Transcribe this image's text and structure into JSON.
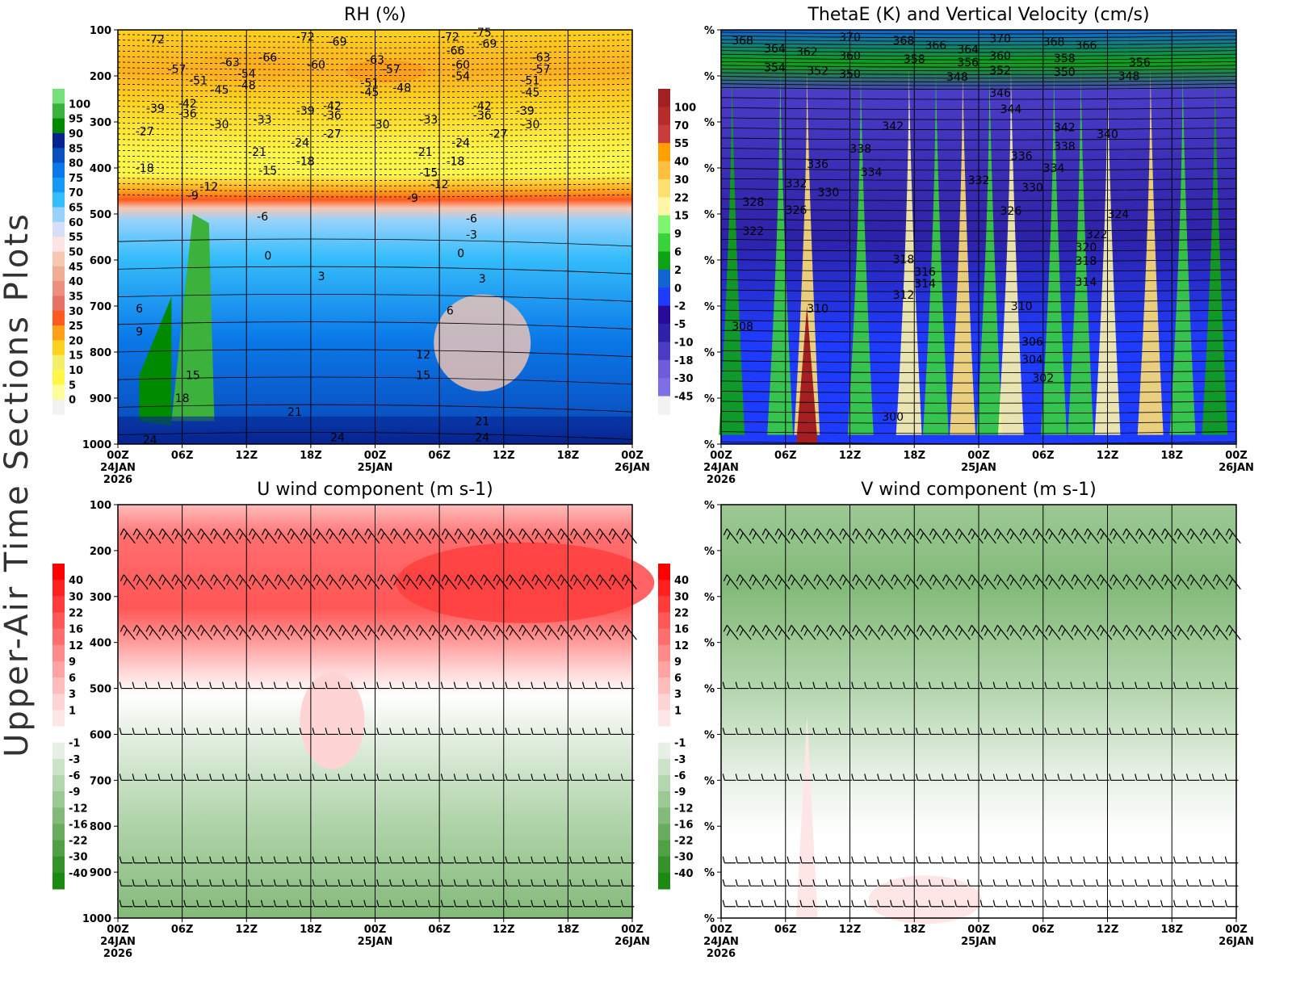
{
  "side_label": "Upper-Air Time Sections Plots",
  "chart_data": [
    {
      "type": "heatmap",
      "title": "RH (%)",
      "x_ticks": [
        "00Z",
        "06Z",
        "12Z",
        "18Z",
        "00Z",
        "06Z",
        "12Z",
        "18Z",
        "00Z"
      ],
      "x_date_labels": [
        {
          "tick": 0,
          "lines": [
            "24JAN",
            "2026"
          ]
        },
        {
          "tick": 4,
          "lines": [
            "25JAN"
          ]
        },
        {
          "tick": 8,
          "lines": [
            "26JAN"
          ]
        }
      ],
      "y_ticks": [
        "100",
        "200",
        "300",
        "400",
        "500",
        "600",
        "700",
        "800",
        "900",
        "1000"
      ],
      "ylim": [
        1000,
        100
      ],
      "x_range_hours": [
        0,
        48
      ],
      "colorbar": {
        "levels": [
          "100",
          "95",
          "90",
          "85",
          "80",
          "75",
          "70",
          "65",
          "60",
          "55",
          "50",
          "45",
          "40",
          "35",
          "30",
          "25",
          "20",
          "15",
          "10",
          "5",
          "0"
        ],
        "colors": [
          "#76e07a",
          "#3cb23c",
          "#008a00",
          "#06238f",
          "#0a4fc0",
          "#0a78e8",
          "#1499f7",
          "#35bdfb",
          "#96d2fb",
          "#d6defb",
          "#fde4e4",
          "#f6c7b3",
          "#efae94",
          "#ec8f80",
          "#e57264",
          "#ff5a1f",
          "#ff9f1a",
          "#ffd11f",
          "#f4ef6a",
          "#fff64a",
          "#fffc9a",
          "#f2f2f2"
        ]
      },
      "contour_labels": [
        {
          "v": "-72",
          "h": 3.5,
          "p": 120
        },
        {
          "v": "-63",
          "h": 10.5,
          "p": 170
        },
        {
          "v": "-66",
          "h": 14,
          "p": 160
        },
        {
          "v": "-72",
          "h": 17.5,
          "p": 115
        },
        {
          "v": "-69",
          "h": 20.5,
          "p": 125
        },
        {
          "v": "-57",
          "h": 5.5,
          "p": 185
        },
        {
          "v": "-51",
          "h": 7.5,
          "p": 210
        },
        {
          "v": "-54",
          "h": 12,
          "p": 195
        },
        {
          "v": "-48",
          "h": 12,
          "p": 220
        },
        {
          "v": "-45",
          "h": 9.5,
          "p": 230
        },
        {
          "v": "-60",
          "h": 18.5,
          "p": 175
        },
        {
          "v": "-63",
          "h": 24,
          "p": 165
        },
        {
          "v": "-57",
          "h": 25.5,
          "p": 185
        },
        {
          "v": "-51",
          "h": 23.5,
          "p": 215
        },
        {
          "v": "-48",
          "h": 26.5,
          "p": 225
        },
        {
          "v": "-45",
          "h": 23.5,
          "p": 235
        },
        {
          "v": "-72",
          "h": 31,
          "p": 115
        },
        {
          "v": "-75",
          "h": 34,
          "p": 105
        },
        {
          "v": "-66",
          "h": 31.5,
          "p": 145
        },
        {
          "v": "-69",
          "h": 34.5,
          "p": 130
        },
        {
          "v": "-60",
          "h": 32,
          "p": 175
        },
        {
          "v": "-54",
          "h": 32,
          "p": 200
        },
        {
          "v": "-63",
          "h": 39.5,
          "p": 160
        },
        {
          "v": "-57",
          "h": 39.5,
          "p": 185
        },
        {
          "v": "-51",
          "h": 38.5,
          "p": 210
        },
        {
          "v": "-45",
          "h": 38.5,
          "p": 235
        },
        {
          "v": "-39",
          "h": 3.5,
          "p": 270
        },
        {
          "v": "-42",
          "h": 6.5,
          "p": 260
        },
        {
          "v": "-36",
          "h": 6.5,
          "p": 282
        },
        {
          "v": "-30",
          "h": 9.5,
          "p": 305
        },
        {
          "v": "-33",
          "h": 13.5,
          "p": 295
        },
        {
          "v": "-39",
          "h": 17.5,
          "p": 275
        },
        {
          "v": "-42",
          "h": 20,
          "p": 265
        },
        {
          "v": "-36",
          "h": 20,
          "p": 285
        },
        {
          "v": "-30",
          "h": 24.5,
          "p": 305
        },
        {
          "v": "-33",
          "h": 29,
          "p": 295
        },
        {
          "v": "-42",
          "h": 34,
          "p": 265
        },
        {
          "v": "-36",
          "h": 34,
          "p": 285
        },
        {
          "v": "-39",
          "h": 38,
          "p": 275
        },
        {
          "v": "-30",
          "h": 38.5,
          "p": 305
        },
        {
          "v": "-27",
          "h": 2.5,
          "p": 320
        },
        {
          "v": "-27",
          "h": 20,
          "p": 325
        },
        {
          "v": "-27",
          "h": 35.5,
          "p": 325
        },
        {
          "v": "-24",
          "h": 17,
          "p": 345
        },
        {
          "v": "-21",
          "h": 13,
          "p": 365
        },
        {
          "v": "-21",
          "h": 28.5,
          "p": 365
        },
        {
          "v": "-24",
          "h": 32,
          "p": 345
        },
        {
          "v": "-18",
          "h": 2.5,
          "p": 400
        },
        {
          "v": "-18",
          "h": 17.5,
          "p": 385
        },
        {
          "v": "-18",
          "h": 31.5,
          "p": 385
        },
        {
          "v": "-15",
          "h": 14,
          "p": 405
        },
        {
          "v": "-15",
          "h": 29,
          "p": 410
        },
        {
          "v": "-12",
          "h": 8.5,
          "p": 440
        },
        {
          "v": "-12",
          "h": 30,
          "p": 435
        },
        {
          "v": "-9",
          "h": 7,
          "p": 460
        },
        {
          "v": "-9",
          "h": 27.5,
          "p": 465
        },
        {
          "v": "-6",
          "h": 13.5,
          "p": 505
        },
        {
          "v": "-6",
          "h": 33,
          "p": 510
        },
        {
          "v": "-3",
          "h": 33,
          "p": 545
        },
        {
          "v": "0",
          "h": 14,
          "p": 590
        },
        {
          "v": "0",
          "h": 32,
          "p": 585
        },
        {
          "v": "3",
          "h": 19,
          "p": 635
        },
        {
          "v": "3",
          "h": 34,
          "p": 640
        },
        {
          "v": "6",
          "h": 2,
          "p": 705
        },
        {
          "v": "6",
          "h": 31,
          "p": 710
        },
        {
          "v": "9",
          "h": 2,
          "p": 755
        },
        {
          "v": "12",
          "h": 28.5,
          "p": 805
        },
        {
          "v": "15",
          "h": 7,
          "p": 850
        },
        {
          "v": "15",
          "h": 28.5,
          "p": 850
        },
        {
          "v": "18",
          "h": 6,
          "p": 900
        },
        {
          "v": "21",
          "h": 16.5,
          "p": 930
        },
        {
          "v": "21",
          "h": 34,
          "p": 950
        },
        {
          "v": "24",
          "h": 3,
          "p": 990
        },
        {
          "v": "24",
          "h": 20.5,
          "p": 985
        },
        {
          "v": "24",
          "h": 34,
          "p": 985
        }
      ]
    },
    {
      "type": "heatmap",
      "title": "ThetaE (K) and Vertical Velocity (cm/s)",
      "x_ticks": [
        "00Z",
        "06Z",
        "12Z",
        "18Z",
        "00Z",
        "06Z",
        "12Z",
        "18Z",
        "00Z"
      ],
      "x_date_labels": [
        {
          "tick": 0,
          "lines": [
            "24JAN",
            "2026"
          ]
        },
        {
          "tick": 4,
          "lines": [
            "25JAN"
          ]
        },
        {
          "tick": 8,
          "lines": [
            "26JAN"
          ]
        }
      ],
      "y_ticks": [
        "%",
        "%",
        "%",
        "%",
        "%",
        "%",
        "%",
        "%",
        "%",
        "%"
      ],
      "ylim": [
        1000,
        100
      ],
      "x_range_hours": [
        0,
        48
      ],
      "colorbar": {
        "levels": [
          "100",
          "70",
          "55",
          "40",
          "30",
          "22",
          "15",
          "9",
          "6",
          "2",
          "0",
          "-2",
          "-5",
          "-10",
          "-18",
          "-30",
          "-45"
        ],
        "colors": [
          "#a31f22",
          "#b82b2b",
          "#c83c3c",
          "#ff9f00",
          "#ffbf3f",
          "#ffdf70",
          "#fff6a8",
          "#7ff46f",
          "#38d23c",
          "#0ea314",
          "#1363d1",
          "#1e3cff",
          "#2a0a9b",
          "#2e22a8",
          "#4a3cc6",
          "#6e5cda",
          "#7d6fe6",
          "#f2f2f2"
        ]
      },
      "contour_labels": [
        {
          "v": "368",
          "h": 2,
          "p": 123
        },
        {
          "v": "364",
          "h": 5,
          "p": 140
        },
        {
          "v": "362",
          "h": 8,
          "p": 147
        },
        {
          "v": "370",
          "h": 12,
          "p": 116
        },
        {
          "v": "360",
          "h": 12,
          "p": 156
        },
        {
          "v": "368",
          "h": 17,
          "p": 123
        },
        {
          "v": "366",
          "h": 20,
          "p": 133
        },
        {
          "v": "358",
          "h": 18,
          "p": 163
        },
        {
          "v": "364",
          "h": 23,
          "p": 142
        },
        {
          "v": "356",
          "h": 23,
          "p": 170
        },
        {
          "v": "370",
          "h": 26,
          "p": 118
        },
        {
          "v": "360",
          "h": 26,
          "p": 156
        },
        {
          "v": "368",
          "h": 31,
          "p": 125
        },
        {
          "v": "366",
          "h": 34,
          "p": 133
        },
        {
          "v": "358",
          "h": 32,
          "p": 161
        },
        {
          "v": "354",
          "h": 5,
          "p": 182
        },
        {
          "v": "352",
          "h": 9,
          "p": 189
        },
        {
          "v": "350",
          "h": 12,
          "p": 196
        },
        {
          "v": "348",
          "h": 22,
          "p": 202
        },
        {
          "v": "352",
          "h": 26,
          "p": 188
        },
        {
          "v": "350",
          "h": 32,
          "p": 191
        },
        {
          "v": "356",
          "h": 39,
          "p": 170
        },
        {
          "v": "348",
          "h": 38,
          "p": 200
        },
        {
          "v": "346",
          "h": 26,
          "p": 237
        },
        {
          "v": "344",
          "h": 27,
          "p": 272
        },
        {
          "v": "342",
          "h": 16,
          "p": 309
        },
        {
          "v": "342",
          "h": 32,
          "p": 311
        },
        {
          "v": "340",
          "h": 36,
          "p": 326
        },
        {
          "v": "338",
          "h": 13,
          "p": 358
        },
        {
          "v": "338",
          "h": 32,
          "p": 353
        },
        {
          "v": "336",
          "h": 9,
          "p": 391
        },
        {
          "v": "336",
          "h": 28,
          "p": 374
        },
        {
          "v": "334",
          "h": 14,
          "p": 409
        },
        {
          "v": "334",
          "h": 31,
          "p": 400
        },
        {
          "v": "332",
          "h": 7,
          "p": 433
        },
        {
          "v": "332",
          "h": 24,
          "p": 426
        },
        {
          "v": "330",
          "h": 10,
          "p": 453
        },
        {
          "v": "330",
          "h": 29,
          "p": 442
        },
        {
          "v": "328",
          "h": 3,
          "p": 474
        },
        {
          "v": "326",
          "h": 7,
          "p": 491
        },
        {
          "v": "326",
          "h": 27,
          "p": 493
        },
        {
          "v": "324",
          "h": 37,
          "p": 500
        },
        {
          "v": "322",
          "h": 3,
          "p": 537
        },
        {
          "v": "322",
          "h": 35,
          "p": 544
        },
        {
          "v": "320",
          "h": 34,
          "p": 572
        },
        {
          "v": "318",
          "h": 17,
          "p": 598
        },
        {
          "v": "318",
          "h": 34,
          "p": 602
        },
        {
          "v": "316",
          "h": 19,
          "p": 625
        },
        {
          "v": "314",
          "h": 19,
          "p": 651
        },
        {
          "v": "314",
          "h": 34,
          "p": 647
        },
        {
          "v": "312",
          "h": 17,
          "p": 675
        },
        {
          "v": "310",
          "h": 9,
          "p": 705
        },
        {
          "v": "310",
          "h": 28,
          "p": 700
        },
        {
          "v": "308",
          "h": 2,
          "p": 744
        },
        {
          "v": "306",
          "h": 29,
          "p": 777
        },
        {
          "v": "304",
          "h": 29,
          "p": 816
        },
        {
          "v": "302",
          "h": 30,
          "p": 856
        },
        {
          "v": "300",
          "h": 16,
          "p": 940
        }
      ]
    },
    {
      "type": "heatmap",
      "title": "U wind component (m s-1)",
      "x_ticks": [
        "00Z",
        "06Z",
        "12Z",
        "18Z",
        "00Z",
        "06Z",
        "12Z",
        "18Z",
        "00Z"
      ],
      "x_date_labels": [
        {
          "tick": 0,
          "lines": [
            "24JAN",
            "2026"
          ]
        },
        {
          "tick": 4,
          "lines": [
            "25JAN"
          ]
        },
        {
          "tick": 8,
          "lines": [
            "26JAN"
          ]
        }
      ],
      "y_ticks": [
        "100",
        "200",
        "300",
        "400",
        "500",
        "600",
        "700",
        "800",
        "900",
        "1000"
      ],
      "ylim": [
        1000,
        100
      ],
      "x_range_hours": [
        0,
        48
      ],
      "wind_barbs": true,
      "colorbar": {
        "levels": [
          "40",
          "30",
          "22",
          "16",
          "12",
          "9",
          "6",
          "3",
          "1",
          "-1",
          "-3",
          "-6",
          "-9",
          "-12",
          "-16",
          "-22",
          "-30",
          "-40"
        ],
        "colors": [
          "#ff0000",
          "#ff2020",
          "#ff3c3c",
          "#ff5656",
          "#ff6e6e",
          "#ff8a8a",
          "#ffa3a3",
          "#ffbcbc",
          "#ffd4d4",
          "#ffe6e6",
          "#ffffff",
          "#e6f0e4",
          "#cde3c9",
          "#b4d6ae",
          "#9cc893",
          "#83ba79",
          "#6aac5e",
          "#50a044",
          "#35922a",
          "#1c8a12"
        ]
      }
    },
    {
      "type": "heatmap",
      "title": "V wind component (m s-1)",
      "x_ticks": [
        "00Z",
        "06Z",
        "12Z",
        "18Z",
        "00Z",
        "06Z",
        "12Z",
        "18Z",
        "00Z"
      ],
      "x_date_labels": [
        {
          "tick": 0,
          "lines": [
            "24JAN",
            "2026"
          ]
        },
        {
          "tick": 4,
          "lines": [
            "25JAN"
          ]
        },
        {
          "tick": 8,
          "lines": [
            "26JAN"
          ]
        }
      ],
      "y_ticks": [
        "%",
        "%",
        "%",
        "%",
        "%",
        "%",
        "%",
        "%",
        "%",
        "%"
      ],
      "ylim": [
        1000,
        100
      ],
      "x_range_hours": [
        0,
        48
      ],
      "wind_barbs": true,
      "colorbar": {
        "levels": [
          "40",
          "30",
          "22",
          "16",
          "12",
          "9",
          "6",
          "3",
          "1",
          "-1",
          "-3",
          "-6",
          "-9",
          "-12",
          "-16",
          "-22",
          "-30",
          "-40"
        ],
        "colors": [
          "#ff0000",
          "#ff2020",
          "#ff3c3c",
          "#ff5656",
          "#ff6e6e",
          "#ff8a8a",
          "#ffa3a3",
          "#ffbcbc",
          "#ffd4d4",
          "#ffe6e6",
          "#ffffff",
          "#e6f0e4",
          "#cde3c9",
          "#b4d6ae",
          "#9cc893",
          "#83ba79",
          "#6aac5e",
          "#50a044",
          "#35922a",
          "#1c8a12"
        ]
      }
    }
  ]
}
